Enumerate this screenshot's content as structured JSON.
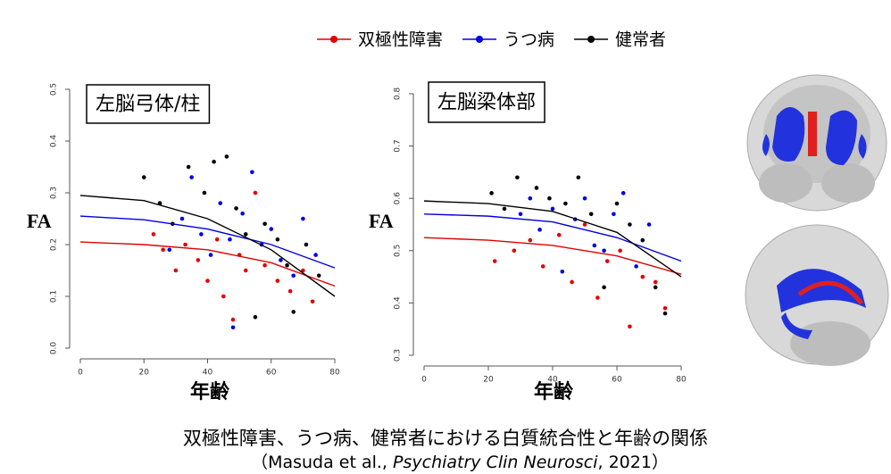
{
  "chart_data": [
    {
      "type": "scatter",
      "title": "左脳弓体/柱",
      "xlabel": "年齢",
      "ylabel": "FA",
      "xlim": [
        0,
        80
      ],
      "xticks": [
        0,
        20,
        40,
        60,
        80
      ],
      "ylim": [
        0,
        0.5
      ],
      "yticks": [
        {
          "value": 0,
          "label": "0.0"
        },
        0.1,
        0.2,
        0.3,
        0.4,
        0.5
      ],
      "series": [
        {
          "name": "双極性障害",
          "color": "#e00000",
          "x": [
            23,
            26,
            30,
            33,
            37,
            40,
            43,
            45,
            48,
            50,
            52,
            55,
            58,
            62,
            66,
            70,
            73
          ],
          "values": [
            0.22,
            0.19,
            0.15,
            0.2,
            0.17,
            0.13,
            0.21,
            0.1,
            0.055,
            0.18,
            0.15,
            0.3,
            0.16,
            0.13,
            0.11,
            0.15,
            0.09
          ],
          "fit": {
            "x": [
              0,
              20,
              40,
              60,
              80
            ],
            "values": [
              0.205,
              0.2,
              0.19,
              0.165,
              0.12
            ]
          }
        },
        {
          "name": "うつ病",
          "color": "#0000e0",
          "x": [
            28,
            32,
            35,
            38,
            41,
            44,
            47,
            48,
            51,
            54,
            57,
            60,
            63,
            67,
            70,
            74
          ],
          "values": [
            0.19,
            0.25,
            0.33,
            0.22,
            0.18,
            0.28,
            0.21,
            0.04,
            0.26,
            0.34,
            0.2,
            0.23,
            0.17,
            0.14,
            0.25,
            0.18
          ],
          "fit": {
            "x": [
              0,
              20,
              40,
              60,
              80
            ],
            "values": [
              0.255,
              0.248,
              0.23,
              0.2,
              0.155
            ]
          }
        },
        {
          "name": "健常者",
          "color": "#000000",
          "x": [
            20,
            25,
            29,
            34,
            39,
            42,
            46,
            49,
            52,
            55,
            58,
            62,
            65,
            67,
            71,
            75
          ],
          "values": [
            0.33,
            0.28,
            0.24,
            0.35,
            0.3,
            0.36,
            0.37,
            0.27,
            0.22,
            0.06,
            0.24,
            0.21,
            0.16,
            0.07,
            0.2,
            0.14
          ],
          "fit": {
            "x": [
              0,
              20,
              40,
              60,
              80
            ],
            "values": [
              0.295,
              0.285,
              0.25,
              0.19,
              0.1
            ]
          }
        }
      ]
    },
    {
      "type": "scatter",
      "title": "左脳梁体部",
      "xlabel": "年齢",
      "ylabel": "FA",
      "xlim": [
        0,
        80
      ],
      "xticks": [
        0,
        20,
        40,
        60,
        80
      ],
      "ylim": [
        0.3,
        0.8
      ],
      "yticks": [
        0.3,
        0.4,
        0.5,
        0.6,
        0.7,
        0.8
      ],
      "series": [
        {
          "name": "双極性障害",
          "color": "#e00000",
          "x": [
            22,
            28,
            33,
            37,
            42,
            46,
            50,
            54,
            57,
            61,
            64,
            68,
            72,
            75
          ],
          "values": [
            0.48,
            0.5,
            0.52,
            0.47,
            0.53,
            0.44,
            0.55,
            0.41,
            0.48,
            0.5,
            0.355,
            0.45,
            0.44,
            0.39
          ],
          "fit": {
            "x": [
              0,
              20,
              40,
              60,
              80
            ],
            "values": [
              0.525,
              0.52,
              0.51,
              0.49,
              0.455
            ]
          }
        },
        {
          "name": "うつ病",
          "color": "#0000e0",
          "x": [
            30,
            33,
            36,
            40,
            43,
            47,
            50,
            53,
            56,
            59,
            62,
            66,
            70
          ],
          "values": [
            0.57,
            0.6,
            0.54,
            0.58,
            0.46,
            0.56,
            0.6,
            0.51,
            0.5,
            0.57,
            0.61,
            0.47,
            0.55
          ],
          "fit": {
            "x": [
              0,
              20,
              40,
              60,
              80
            ],
            "values": [
              0.57,
              0.566,
              0.555,
              0.525,
              0.48
            ]
          }
        },
        {
          "name": "健常者",
          "color": "#000000",
          "x": [
            21,
            25,
            29,
            35,
            39,
            44,
            48,
            52,
            56,
            60,
            64,
            68,
            72,
            75
          ],
          "values": [
            0.61,
            0.58,
            0.64,
            0.62,
            0.6,
            0.59,
            0.64,
            0.57,
            0.43,
            0.59,
            0.55,
            0.52,
            0.43,
            0.38
          ],
          "fit": {
            "x": [
              0,
              20,
              40,
              60,
              80
            ],
            "values": [
              0.595,
              0.59,
              0.575,
              0.535,
              0.45
            ]
          }
        }
      ]
    }
  ],
  "caption": "双極性障害、うつ病、健常者における白質統合性と年齢の関係",
  "citation": {
    "before": "（Masuda et al., ",
    "journal": "Psychiatry Clin Neurosci",
    "after": ", 2021）"
  }
}
